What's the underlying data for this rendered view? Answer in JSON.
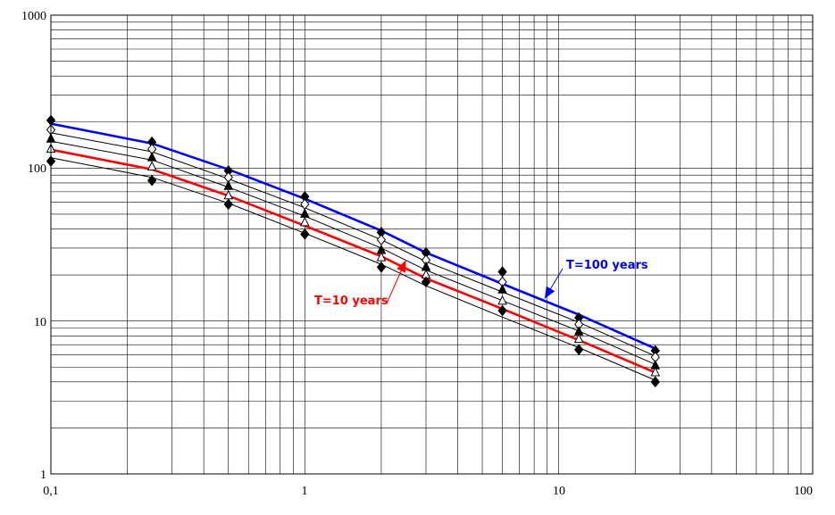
{
  "chart_data": {
    "type": "line",
    "title": "",
    "xlabel": "",
    "ylabel": "",
    "x_scale": "log",
    "y_scale": "log",
    "xlim": [
      0.1,
      100
    ],
    "ylim": [
      1,
      1000
    ],
    "grid": true,
    "x_tick_labels": [
      "0,1",
      "1",
      "10",
      "100"
    ],
    "y_tick_labels": [
      "1",
      "10",
      "100",
      "1000"
    ],
    "x": [
      0.1,
      0.25,
      0.5,
      1,
      2,
      3,
      6,
      12,
      24
    ],
    "curves": [
      {
        "color": "#0000ff",
        "values": [
          195,
          145,
          98,
          63,
          39,
          28,
          17.5,
          11,
          6.6
        ]
      },
      {
        "color": "#000000",
        "values": [
          170,
          128,
          85,
          55,
          34,
          24.5,
          15.5,
          9.8,
          5.9
        ]
      },
      {
        "color": "#000000",
        "values": [
          150,
          113,
          75,
          48.5,
          30,
          21.5,
          13.6,
          8.6,
          5.2
        ]
      },
      {
        "color": "#ff0000",
        "values": [
          132,
          98,
          66,
          42,
          26.5,
          19,
          12,
          7.5,
          4.6
        ]
      },
      {
        "color": "#000000",
        "values": [
          117,
          87,
          59,
          37.5,
          23.5,
          17,
          10.6,
          6.7,
          4.1
        ]
      }
    ],
    "observations": [
      {
        "marker": "diamond-filled",
        "values": [
          205,
          148,
          96,
          65,
          38,
          28,
          21,
          10.5,
          6.4
        ]
      },
      {
        "marker": "diamond-open",
        "values": [
          178,
          133,
          87,
          58,
          34,
          25,
          18,
          9.5,
          5.8
        ]
      },
      {
        "marker": "triangle-filled",
        "values": [
          155,
          117,
          76,
          50,
          29,
          22.5,
          16,
          8.5,
          5.1
        ]
      },
      {
        "marker": "triangle-open",
        "values": [
          133,
          102,
          66,
          44,
          26,
          20,
          13.5,
          7.6,
          4.6
        ]
      },
      {
        "marker": "diamond-filled",
        "values": [
          111,
          83,
          58,
          37,
          22.5,
          18,
          11.7,
          6.5,
          4.0
        ]
      }
    ],
    "annotations": [
      {
        "text": "T=100 years",
        "color": "#0000ff",
        "arrow_to": [
          8.8,
          14
        ]
      },
      {
        "text": "T=10 years",
        "color": "#ff0000",
        "arrow_to": [
          2.5,
          25
        ]
      }
    ]
  }
}
